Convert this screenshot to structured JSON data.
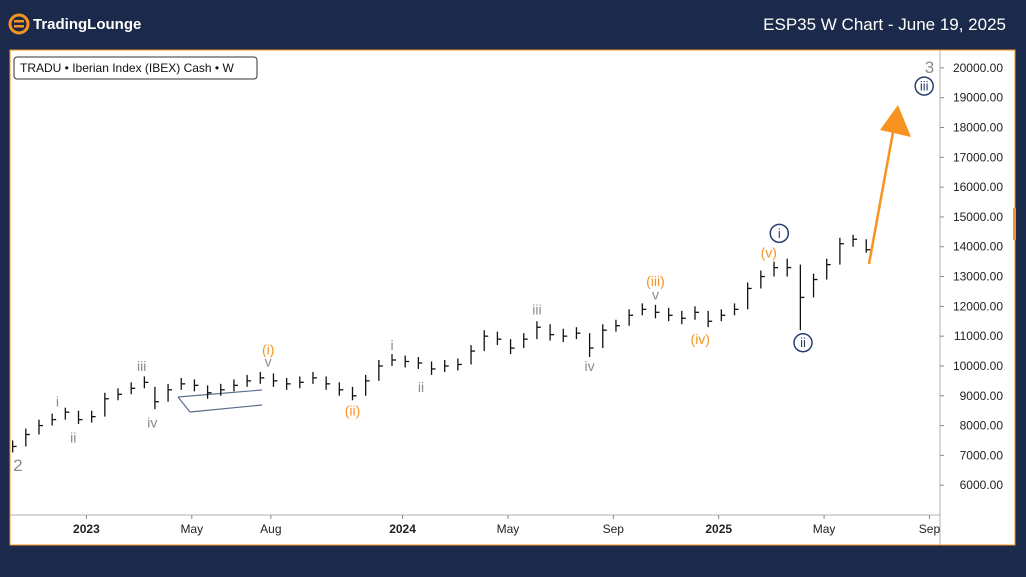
{
  "header": {
    "brand": "TradingLounge",
    "title": "ESP35 W Chart - June 19, 2025"
  },
  "chart_data": {
    "type": "ohlc",
    "legend": "TRADU • Iberian Index (IBEX) Cash • W",
    "x": [
      -2.8,
      -2.3,
      -1.8,
      -1.3,
      -0.8,
      -0.3,
      0.2,
      0.7,
      1.2,
      1.7,
      2.2,
      2.6,
      3.1,
      3.6,
      4.1,
      4.6,
      5.1,
      5.6,
      6.1,
      6.6,
      7.1,
      7.6,
      8.1,
      8.6,
      9.1,
      9.6,
      10.1,
      10.6,
      11.1,
      11.6,
      12.1,
      12.6,
      13.1,
      13.6,
      14.1,
      14.6,
      15.1,
      15.6,
      16.1,
      16.6,
      17.1,
      17.6,
      18.1,
      18.6,
      19.1,
      19.6,
      20.1,
      20.6,
      21.1,
      21.6,
      22.1,
      22.6,
      23.1,
      23.6,
      24.1,
      24.6,
      25.1,
      25.6,
      26.1,
      26.6,
      27.1,
      27.6,
      28.1,
      28.6,
      29.1,
      29.6
    ],
    "high": [
      7500,
      7900,
      8200,
      8400,
      8600,
      8500,
      8500,
      9100,
      9250,
      9450,
      9650,
      9300,
      9400,
      9600,
      9550,
      9350,
      9400,
      9550,
      9700,
      9800,
      9750,
      9600,
      9650,
      9800,
      9650,
      9450,
      9300,
      9700,
      10200,
      10400,
      10350,
      10300,
      10150,
      10200,
      10250,
      10700,
      11200,
      11150,
      10900,
      11100,
      11500,
      11400,
      11250,
      11300,
      11100,
      11400,
      11550,
      11900,
      12100,
      12050,
      11950,
      11850,
      12000,
      11850,
      11900,
      12100,
      12800,
      13200,
      13500,
      13600,
      13400,
      13100,
      13600,
      14300,
      14400,
      14250
    ],
    "low": [
      7100,
      7300,
      7700,
      8000,
      8200,
      8050,
      8100,
      8300,
      8850,
      9050,
      9250,
      8550,
      8800,
      9200,
      9150,
      8900,
      9000,
      9150,
      9300,
      9400,
      9300,
      9200,
      9250,
      9400,
      9200,
      9000,
      8850,
      9000,
      9500,
      10000,
      9950,
      9900,
      9700,
      9800,
      9850,
      10050,
      10500,
      10700,
      10400,
      10600,
      10900,
      10850,
      10800,
      10900,
      10300,
      10600,
      11150,
      11350,
      11700,
      11600,
      11500,
      11400,
      11550,
      11300,
      11500,
      11700,
      11900,
      12600,
      13000,
      13000,
      11200,
      12300,
      12900,
      13400,
      14000,
      13800
    ],
    "close": [
      7300,
      7700,
      8000,
      8200,
      8450,
      8200,
      8300,
      8900,
      9050,
      9250,
      9450,
      8800,
      9200,
      9400,
      9350,
      9100,
      9200,
      9350,
      9500,
      9600,
      9500,
      9400,
      9450,
      9600,
      9400,
      9200,
      9000,
      9500,
      10000,
      10200,
      10150,
      10100,
      9900,
      10000,
      10050,
      10500,
      11000,
      10900,
      10600,
      10900,
      11300,
      11050,
      11000,
      11100,
      10600,
      11200,
      11350,
      11700,
      11900,
      11800,
      11700,
      11600,
      11800,
      11500,
      11700,
      11900,
      12600,
      13000,
      13300,
      13300,
      12300,
      12900,
      13400,
      14100,
      14250,
      13900
    ],
    "color": "#111111",
    "xlim": [
      -2.9,
      32.4
    ],
    "xticks": [
      {
        "value": 0,
        "label": "2023"
      },
      {
        "value": 4,
        "label": "May"
      },
      {
        "value": 7,
        "label": "Aug"
      },
      {
        "value": 12,
        "label": "2024"
      },
      {
        "value": 16,
        "label": "May"
      },
      {
        "value": 20,
        "label": "Sep"
      },
      {
        "value": 24,
        "label": "2025"
      },
      {
        "value": 28,
        "label": "May"
      },
      {
        "value": 32,
        "label": "Sep"
      }
    ],
    "ylim": [
      5000,
      20600
    ],
    "yticks": [
      {
        "value": 6000,
        "label": "6000.00"
      },
      {
        "value": 7000,
        "label": "7000.00"
      },
      {
        "value": 8000,
        "label": "8000.00"
      },
      {
        "value": 9000,
        "label": "9000.00"
      },
      {
        "value": 10000,
        "label": "10000.00"
      },
      {
        "value": 11000,
        "label": "11000.00"
      },
      {
        "value": 12000,
        "label": "12000.00"
      },
      {
        "value": 13000,
        "label": "13000.00"
      },
      {
        "value": 14000,
        "label": "14000.00"
      },
      {
        "value": 15000,
        "label": "15000.00"
      },
      {
        "value": 16000,
        "label": "16000.00"
      },
      {
        "value": 17000,
        "label": "17000.00"
      },
      {
        "value": 18000,
        "label": "18000.00"
      },
      {
        "value": 19000,
        "label": "19000.00"
      },
      {
        "value": 20000,
        "label": "20000.00"
      }
    ],
    "annotations": [
      {
        "text": "2",
        "x": -2.6,
        "y": 6640,
        "color": "#8a8a8a",
        "style": "large"
      },
      {
        "text": "i",
        "x": -1.1,
        "y": 8800,
        "color": "#8a8a8a",
        "style": "plain"
      },
      {
        "text": "ii",
        "x": -0.5,
        "y": 7600,
        "color": "#8a8a8a",
        "style": "plain"
      },
      {
        "text": "iii",
        "x": 2.1,
        "y": 10000,
        "color": "#8a8a8a",
        "style": "plain"
      },
      {
        "text": "iv",
        "x": 2.5,
        "y": 8100,
        "color": "#8a8a8a",
        "style": "plain"
      },
      {
        "text": "v",
        "x": 6.9,
        "y": 10150,
        "color": "#8a8a8a",
        "style": "plain"
      },
      {
        "text": "(i)",
        "x": 6.9,
        "y": 10550,
        "color": "#f7931e",
        "style": "plain"
      },
      {
        "text": "(ii)",
        "x": 10.1,
        "y": 8500,
        "color": "#f7931e",
        "style": "plain"
      },
      {
        "text": "i",
        "x": 11.6,
        "y": 10700,
        "color": "#8a8a8a",
        "style": "plain"
      },
      {
        "text": "ii",
        "x": 12.7,
        "y": 9300,
        "color": "#8a8a8a",
        "style": "plain"
      },
      {
        "text": "iii",
        "x": 17.1,
        "y": 11900,
        "color": "#8a8a8a",
        "style": "plain"
      },
      {
        "text": "iv",
        "x": 19.1,
        "y": 10000,
        "color": "#8a8a8a",
        "style": "plain"
      },
      {
        "text": "v",
        "x": 21.6,
        "y": 12400,
        "color": "#8a8a8a",
        "style": "plain"
      },
      {
        "text": "(iii)",
        "x": 21.6,
        "y": 12850,
        "color": "#f7931e",
        "style": "plain"
      },
      {
        "text": "(iv)",
        "x": 23.3,
        "y": 10900,
        "color": "#f7931e",
        "style": "plain"
      },
      {
        "text": "(v)",
        "x": 25.9,
        "y": 13800,
        "color": "#f7931e",
        "style": "plain"
      },
      {
        "text": "i",
        "x": 26.3,
        "y": 14450,
        "color": "#2c3e70",
        "style": "circle"
      },
      {
        "text": "ii",
        "x": 27.2,
        "y": 10780,
        "color": "#2c3e70",
        "style": "circle"
      },
      {
        "text": "iii",
        "x": 31.8,
        "y": 19390,
        "color": "#2c3e70",
        "style": "circle"
      },
      {
        "text": "3",
        "x": 32.0,
        "y": 20000,
        "color": "#8a8a8a",
        "style": "large"
      }
    ]
  }
}
